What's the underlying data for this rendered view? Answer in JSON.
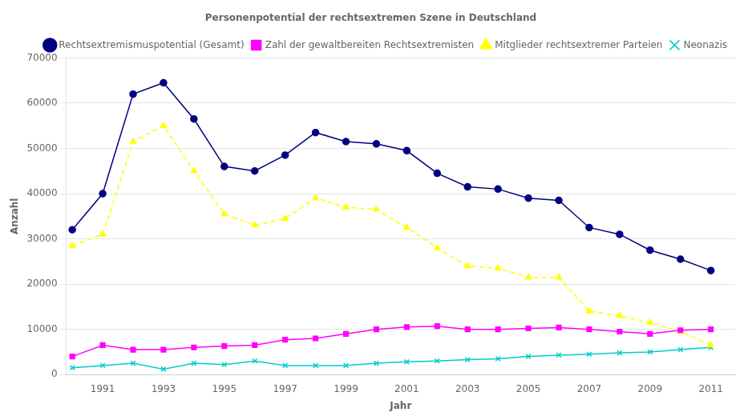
{
  "chart_data": {
    "type": "line",
    "title": "Personenpotential der rechtsextremen Szene in Deutschland",
    "xlabel": "Jahr",
    "ylabel": "Anzahl",
    "x": [
      1990,
      1991,
      1992,
      1993,
      1994,
      1995,
      1996,
      1997,
      1998,
      1999,
      2000,
      2001,
      2002,
      2003,
      2004,
      2005,
      2006,
      2007,
      2008,
      2009,
      2010,
      2011
    ],
    "series": [
      {
        "name": "Rechtsextremismuspotential (Gesamt)",
        "color": "#000080",
        "marker": "circle",
        "line_style": "solid",
        "values": [
          32000,
          40000,
          62000,
          64500,
          56500,
          46000,
          45000,
          48500,
          53500,
          51500,
          51000,
          49500,
          44500,
          41500,
          41000,
          39000,
          38500,
          32500,
          31000,
          27500,
          25500,
          23000
        ]
      },
      {
        "name": "Zahl der gewaltbereiten Rechtsextremisten",
        "color": "#ff00ff",
        "marker": "square",
        "line_style": "solid",
        "values": [
          4000,
          6500,
          5500,
          5500,
          6000,
          6300,
          6500,
          7700,
          8000,
          9000,
          10000,
          10500,
          10700,
          10000,
          10000,
          10200,
          10400,
          10000,
          9500,
          9000,
          9800,
          10000
        ]
      },
      {
        "name": "Mitglieder rechtsextremer Parteien",
        "color": "#ffff00",
        "marker": "triangle",
        "line_style": "dashed",
        "values": [
          28500,
          31000,
          51500,
          55000,
          45000,
          35500,
          33000,
          34500,
          39000,
          37000,
          36500,
          32500,
          28000,
          24000,
          23500,
          21500,
          21500,
          14000,
          13000,
          11500,
          9500,
          6500
        ]
      },
      {
        "name": "Neonazis",
        "color": "#00cccc",
        "marker": "cross",
        "line_style": "solid",
        "values": [
          1500,
          2000,
          2500,
          1200,
          2500,
          2200,
          3000,
          2000,
          2000,
          2000,
          2500,
          2800,
          3000,
          3300,
          3500,
          4000,
          4300,
          4500,
          4800,
          5000,
          5500,
          6000
        ]
      }
    ],
    "xlim": [
      1989.8,
      2011.8
    ],
    "xticks": [
      1991,
      1993,
      1995,
      1997,
      1999,
      2001,
      2003,
      2005,
      2007,
      2009,
      2011
    ],
    "ylim": [
      0,
      70000
    ],
    "yticks": [
      0,
      10000,
      20000,
      30000,
      40000,
      50000,
      60000,
      70000
    ],
    "grid": "y",
    "legend": "upper right"
  }
}
